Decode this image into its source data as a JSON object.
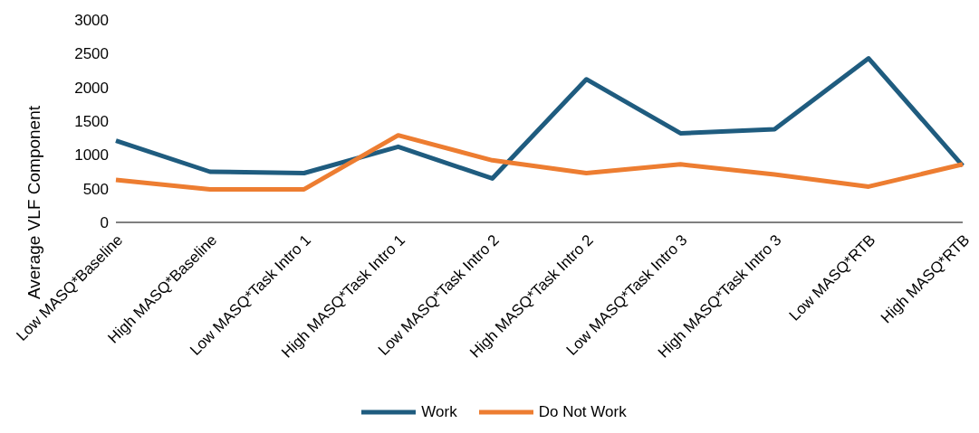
{
  "chart_data": {
    "type": "line",
    "ylabel": "Average VLF Component",
    "categories": [
      "Low MASQ*Baseline",
      "High MASQ*Baseline",
      "Low MASQ*Task Intro 1",
      "High MASQ*Task Intro 1",
      "Low MASQ*Task Intro 2",
      "High MASQ*Task Intro 2",
      "Low MASQ*Task Intro 3",
      "High MASQ*Task Intro 3",
      "Low MASQ*RTB",
      "High MASQ*RTB"
    ],
    "series": [
      {
        "name": "Work",
        "color": "#1f5c7f",
        "values": [
          1210,
          750,
          730,
          1120,
          650,
          2120,
          1320,
          1380,
          2430,
          840
        ]
      },
      {
        "name": "Do Not Work",
        "color": "#ed7d31",
        "values": [
          630,
          490,
          490,
          1290,
          920,
          730,
          860,
          710,
          530,
          860
        ]
      }
    ],
    "ylim": [
      0,
      3000
    ],
    "yticks": [
      0,
      500,
      1000,
      1500,
      2000,
      2500,
      3000
    ],
    "grid": false,
    "legend": "bottom",
    "marker": "none",
    "line_style": "solid"
  }
}
